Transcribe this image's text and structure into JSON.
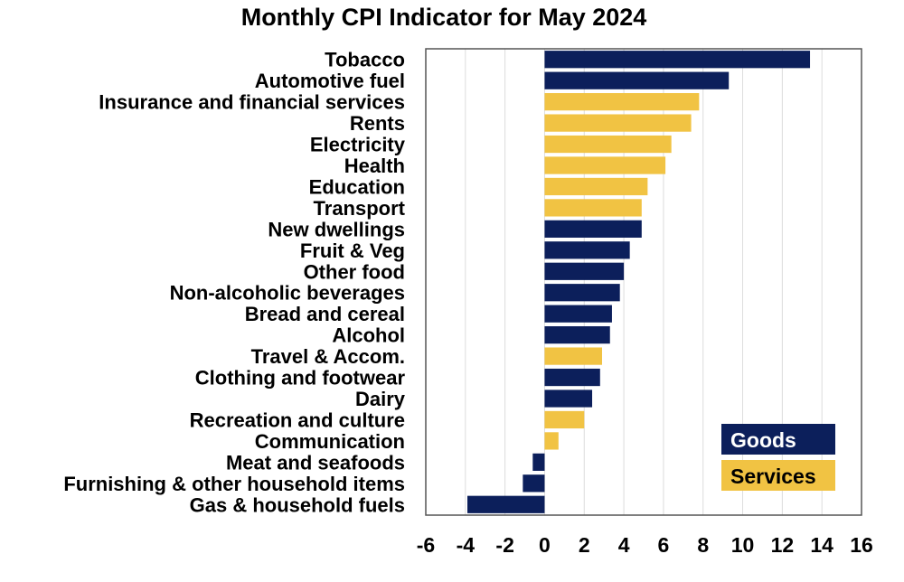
{
  "chart_data": {
    "type": "bar",
    "orientation": "horizontal",
    "title": "Monthly CPI Indicator for May 2024",
    "xlabel": "",
    "ylabel": "",
    "xlim": [
      -6,
      16
    ],
    "xticks": [
      "-6",
      "-4",
      "-2",
      "0",
      "2",
      "4",
      "6",
      "8",
      "10",
      "12",
      "14",
      "16"
    ],
    "grid": true,
    "legend": {
      "placement": "bottom-right",
      "entries": [
        {
          "name": "Goods",
          "color": "#0c1f5b",
          "text_color": "#ffffff"
        },
        {
          "name": "Services",
          "color": "#f1c343",
          "text_color": "#000000"
        }
      ]
    },
    "categories": [
      "Tobacco",
      "Automotive fuel",
      "Insurance and financial services",
      "Rents",
      "Electricity",
      "Health",
      "Education",
      "Transport",
      "New dwellings",
      "Fruit & Veg",
      "Other food",
      "Non-alcoholic beverages",
      "Bread and cereal",
      "Alcohol",
      "Travel & Accom.",
      "Clothing and footwear",
      "Dairy",
      "Recreation and culture",
      "Communication",
      "Meat and seafoods",
      "Furnishing & other household items",
      "Gas & household fuels"
    ],
    "values": [
      13.4,
      9.3,
      7.8,
      7.4,
      6.4,
      6.1,
      5.2,
      4.9,
      4.9,
      4.3,
      4.0,
      3.8,
      3.4,
      3.3,
      2.9,
      2.8,
      2.4,
      2.0,
      0.7,
      -0.6,
      -1.1,
      -3.9
    ],
    "groups": [
      "Goods",
      "Goods",
      "Services",
      "Services",
      "Services",
      "Services",
      "Services",
      "Services",
      "Goods",
      "Goods",
      "Goods",
      "Goods",
      "Goods",
      "Goods",
      "Services",
      "Goods",
      "Goods",
      "Services",
      "Services",
      "Goods",
      "Goods",
      "Goods"
    ]
  }
}
